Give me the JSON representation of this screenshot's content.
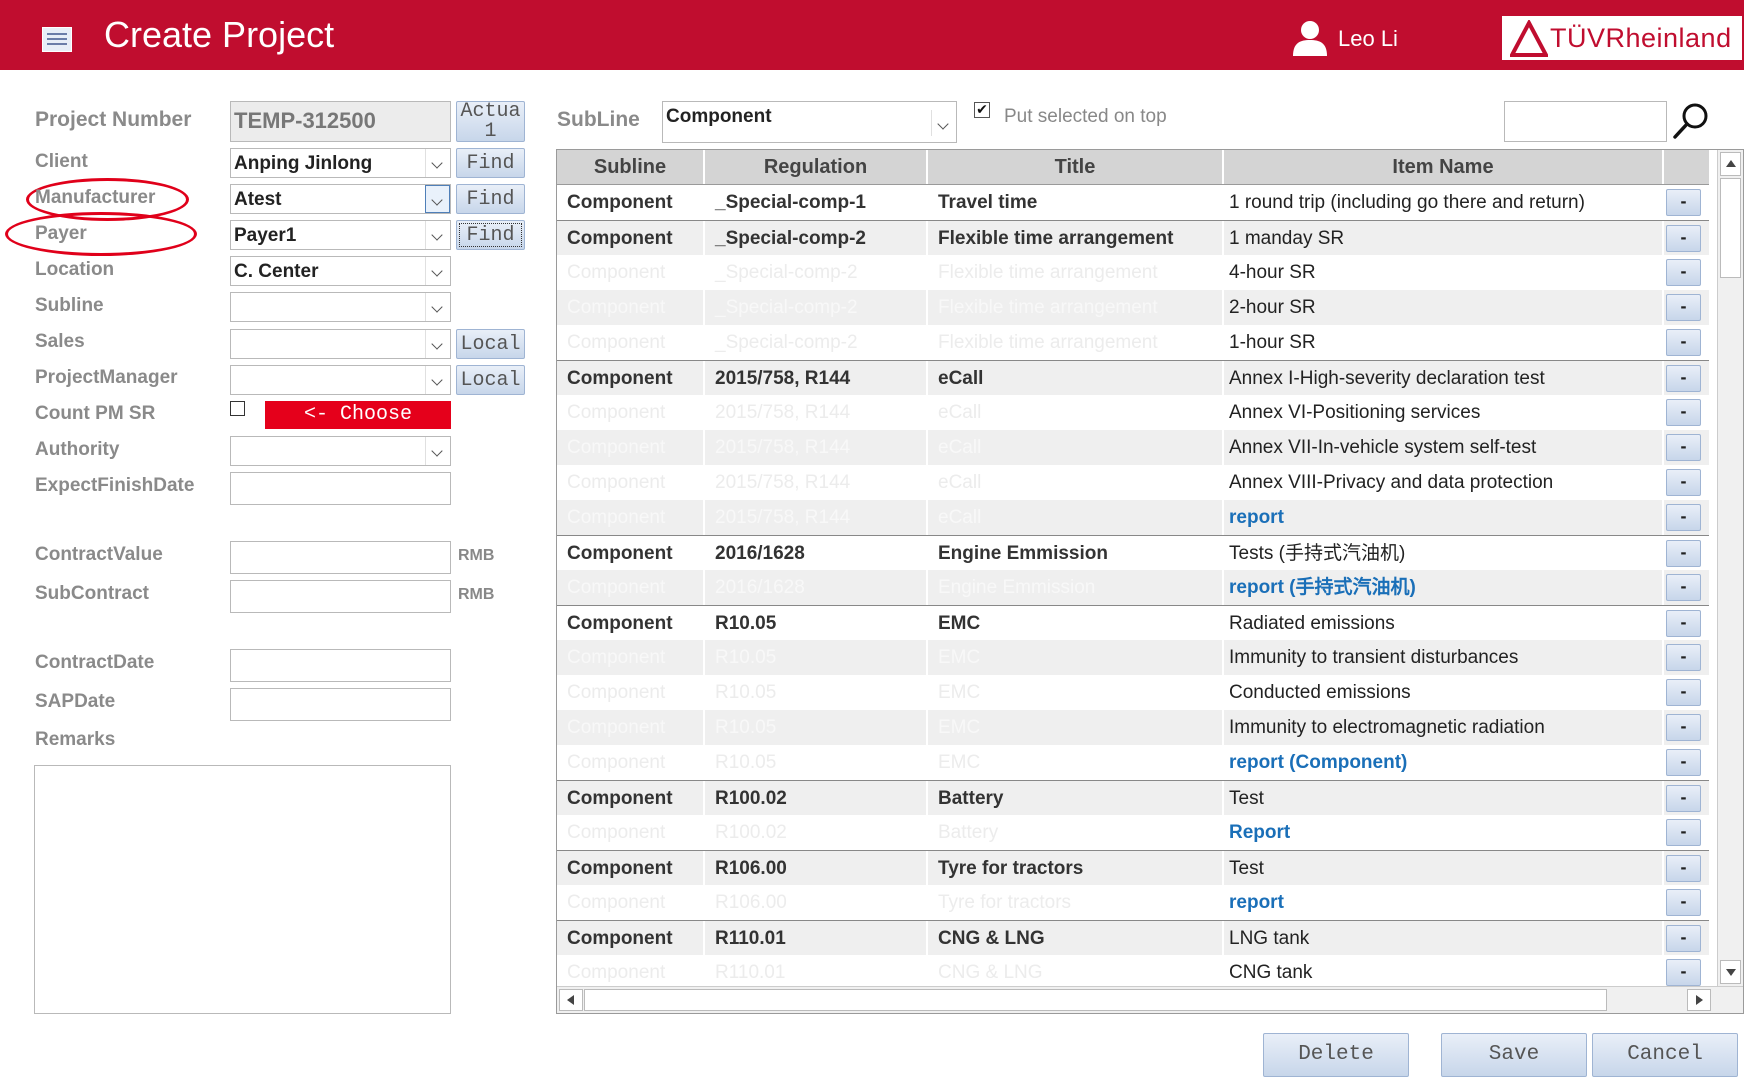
{
  "header": {
    "title": "Create Project",
    "user_name": "Leo Li",
    "brand": "TÜVRheinland",
    "brand_color": "#c00d2f"
  },
  "form": {
    "project_number": {
      "label": "Project Number",
      "value": "TEMP-312500",
      "button": "Actua\n1"
    },
    "client": {
      "label": "Client",
      "value": "Anping Jinlong",
      "button": "Find"
    },
    "manufacturer": {
      "label": "Manufacturer",
      "value": "Atest",
      "button": "Find"
    },
    "payer": {
      "label": "Payer",
      "value": "Payer1",
      "button": "Find"
    },
    "location": {
      "label": "Location",
      "value": "C. Center"
    },
    "subline": {
      "label": "Subline",
      "value": ""
    },
    "sales": {
      "label": "Sales",
      "value": "",
      "button": "Local"
    },
    "project_manager": {
      "label": "ProjectManager",
      "value": "",
      "button": "Local"
    },
    "count_pm_sr": {
      "label": "Count PM SR",
      "checked": false,
      "choose_label": "<- Choose"
    },
    "authority": {
      "label": "Authority",
      "value": ""
    },
    "expect_finish_date": {
      "label": "ExpectFinishDate",
      "value": ""
    },
    "contract_value": {
      "label": "ContractValue",
      "value": "",
      "unit": "RMB"
    },
    "sub_contract": {
      "label": "SubContract",
      "value": "",
      "unit": "RMB"
    },
    "contract_date": {
      "label": "ContractDate",
      "value": ""
    },
    "sap_date": {
      "label": "SAPDate",
      "value": ""
    },
    "remarks": {
      "label": "Remarks",
      "value": ""
    }
  },
  "filter": {
    "subline_label": "SubLine",
    "subline_value": "Component",
    "put_selected_on_top": {
      "label": "Put selected on top",
      "checked": true
    },
    "search_value": ""
  },
  "table": {
    "columns": [
      "Subline",
      "Regulation",
      "Title",
      "Item Name"
    ],
    "action_label": "-",
    "rows": [
      {
        "subline": "Component",
        "regulation": "_Special-comp-1",
        "title": "Travel time",
        "item": "1 round trip (including go there and return)",
        "ghost": false,
        "link": false
      },
      {
        "subline": "Component",
        "regulation": "_Special-comp-2",
        "title": "Flexible time arrangement",
        "item": "1 manday SR",
        "ghost": false,
        "link": false
      },
      {
        "subline": "Component",
        "regulation": "_Special-comp-2",
        "title": "Flexible time arrangement",
        "item": "4-hour SR",
        "ghost": true,
        "link": false
      },
      {
        "subline": "Component",
        "regulation": "_Special-comp-2",
        "title": "Flexible time arrangement",
        "item": "2-hour SR",
        "ghost": true,
        "link": false
      },
      {
        "subline": "Component",
        "regulation": "_Special-comp-2",
        "title": "Flexible time arrangement",
        "item": "1-hour SR",
        "ghost": true,
        "link": false
      },
      {
        "subline": "Component",
        "regulation": "2015/758, R144",
        "title": "eCall",
        "item": "Annex I-High-severity declaration test",
        "ghost": false,
        "link": false
      },
      {
        "subline": "Component",
        "regulation": "2015/758, R144",
        "title": "eCall",
        "item": "Annex VI-Positioning services",
        "ghost": true,
        "link": false
      },
      {
        "subline": "Component",
        "regulation": "2015/758, R144",
        "title": "eCall",
        "item": "Annex VII-In-vehicle system self-test",
        "ghost": true,
        "link": false
      },
      {
        "subline": "Component",
        "regulation": "2015/758, R144",
        "title": "eCall",
        "item": "Annex VIII-Privacy and data protection",
        "ghost": true,
        "link": false
      },
      {
        "subline": "Component",
        "regulation": "2015/758, R144",
        "title": "eCall",
        "item": "report",
        "ghost": true,
        "link": true
      },
      {
        "subline": "Component",
        "regulation": "2016/1628",
        "title": "Engine Emmission",
        "item": "Tests (手持式汽油机)",
        "ghost": false,
        "link": false
      },
      {
        "subline": "Component",
        "regulation": "2016/1628",
        "title": "Engine Emmission",
        "item": "report (手持式汽油机)",
        "ghost": true,
        "link": true
      },
      {
        "subline": "Component",
        "regulation": "R10.05",
        "title": "EMC",
        "item": "Radiated emissions",
        "ghost": false,
        "link": false
      },
      {
        "subline": "Component",
        "regulation": "R10.05",
        "title": "EMC",
        "item": "Immunity to transient disturbances",
        "ghost": true,
        "link": false
      },
      {
        "subline": "Component",
        "regulation": "R10.05",
        "title": "EMC",
        "item": "Conducted emissions",
        "ghost": true,
        "link": false
      },
      {
        "subline": "Component",
        "regulation": "R10.05",
        "title": "EMC",
        "item": "Immunity to electromagnetic radiation",
        "ghost": true,
        "link": false
      },
      {
        "subline": "Component",
        "regulation": "R10.05",
        "title": "EMC",
        "item": "report (Component)",
        "ghost": true,
        "link": true
      },
      {
        "subline": "Component",
        "regulation": "R100.02",
        "title": "Battery",
        "item": "Test",
        "ghost": false,
        "link": false
      },
      {
        "subline": "Component",
        "regulation": "R100.02",
        "title": "Battery",
        "item": "Report",
        "ghost": true,
        "link": true
      },
      {
        "subline": "Component",
        "regulation": "R106.00",
        "title": "Tyre for tractors",
        "item": "Test",
        "ghost": false,
        "link": false
      },
      {
        "subline": "Component",
        "regulation": "R106.00",
        "title": "Tyre for tractors",
        "item": "report",
        "ghost": true,
        "link": true
      },
      {
        "subline": "Component",
        "regulation": "R110.01",
        "title": "CNG & LNG",
        "item": "LNG tank",
        "ghost": false,
        "link": false
      },
      {
        "subline": "Component",
        "regulation": "R110.01",
        "title": "CNG & LNG",
        "item": "CNG tank",
        "ghost": true,
        "link": false
      }
    ]
  },
  "footer": {
    "delete_label": "Delete",
    "save_label": "Save",
    "cancel_label": "Cancel"
  }
}
